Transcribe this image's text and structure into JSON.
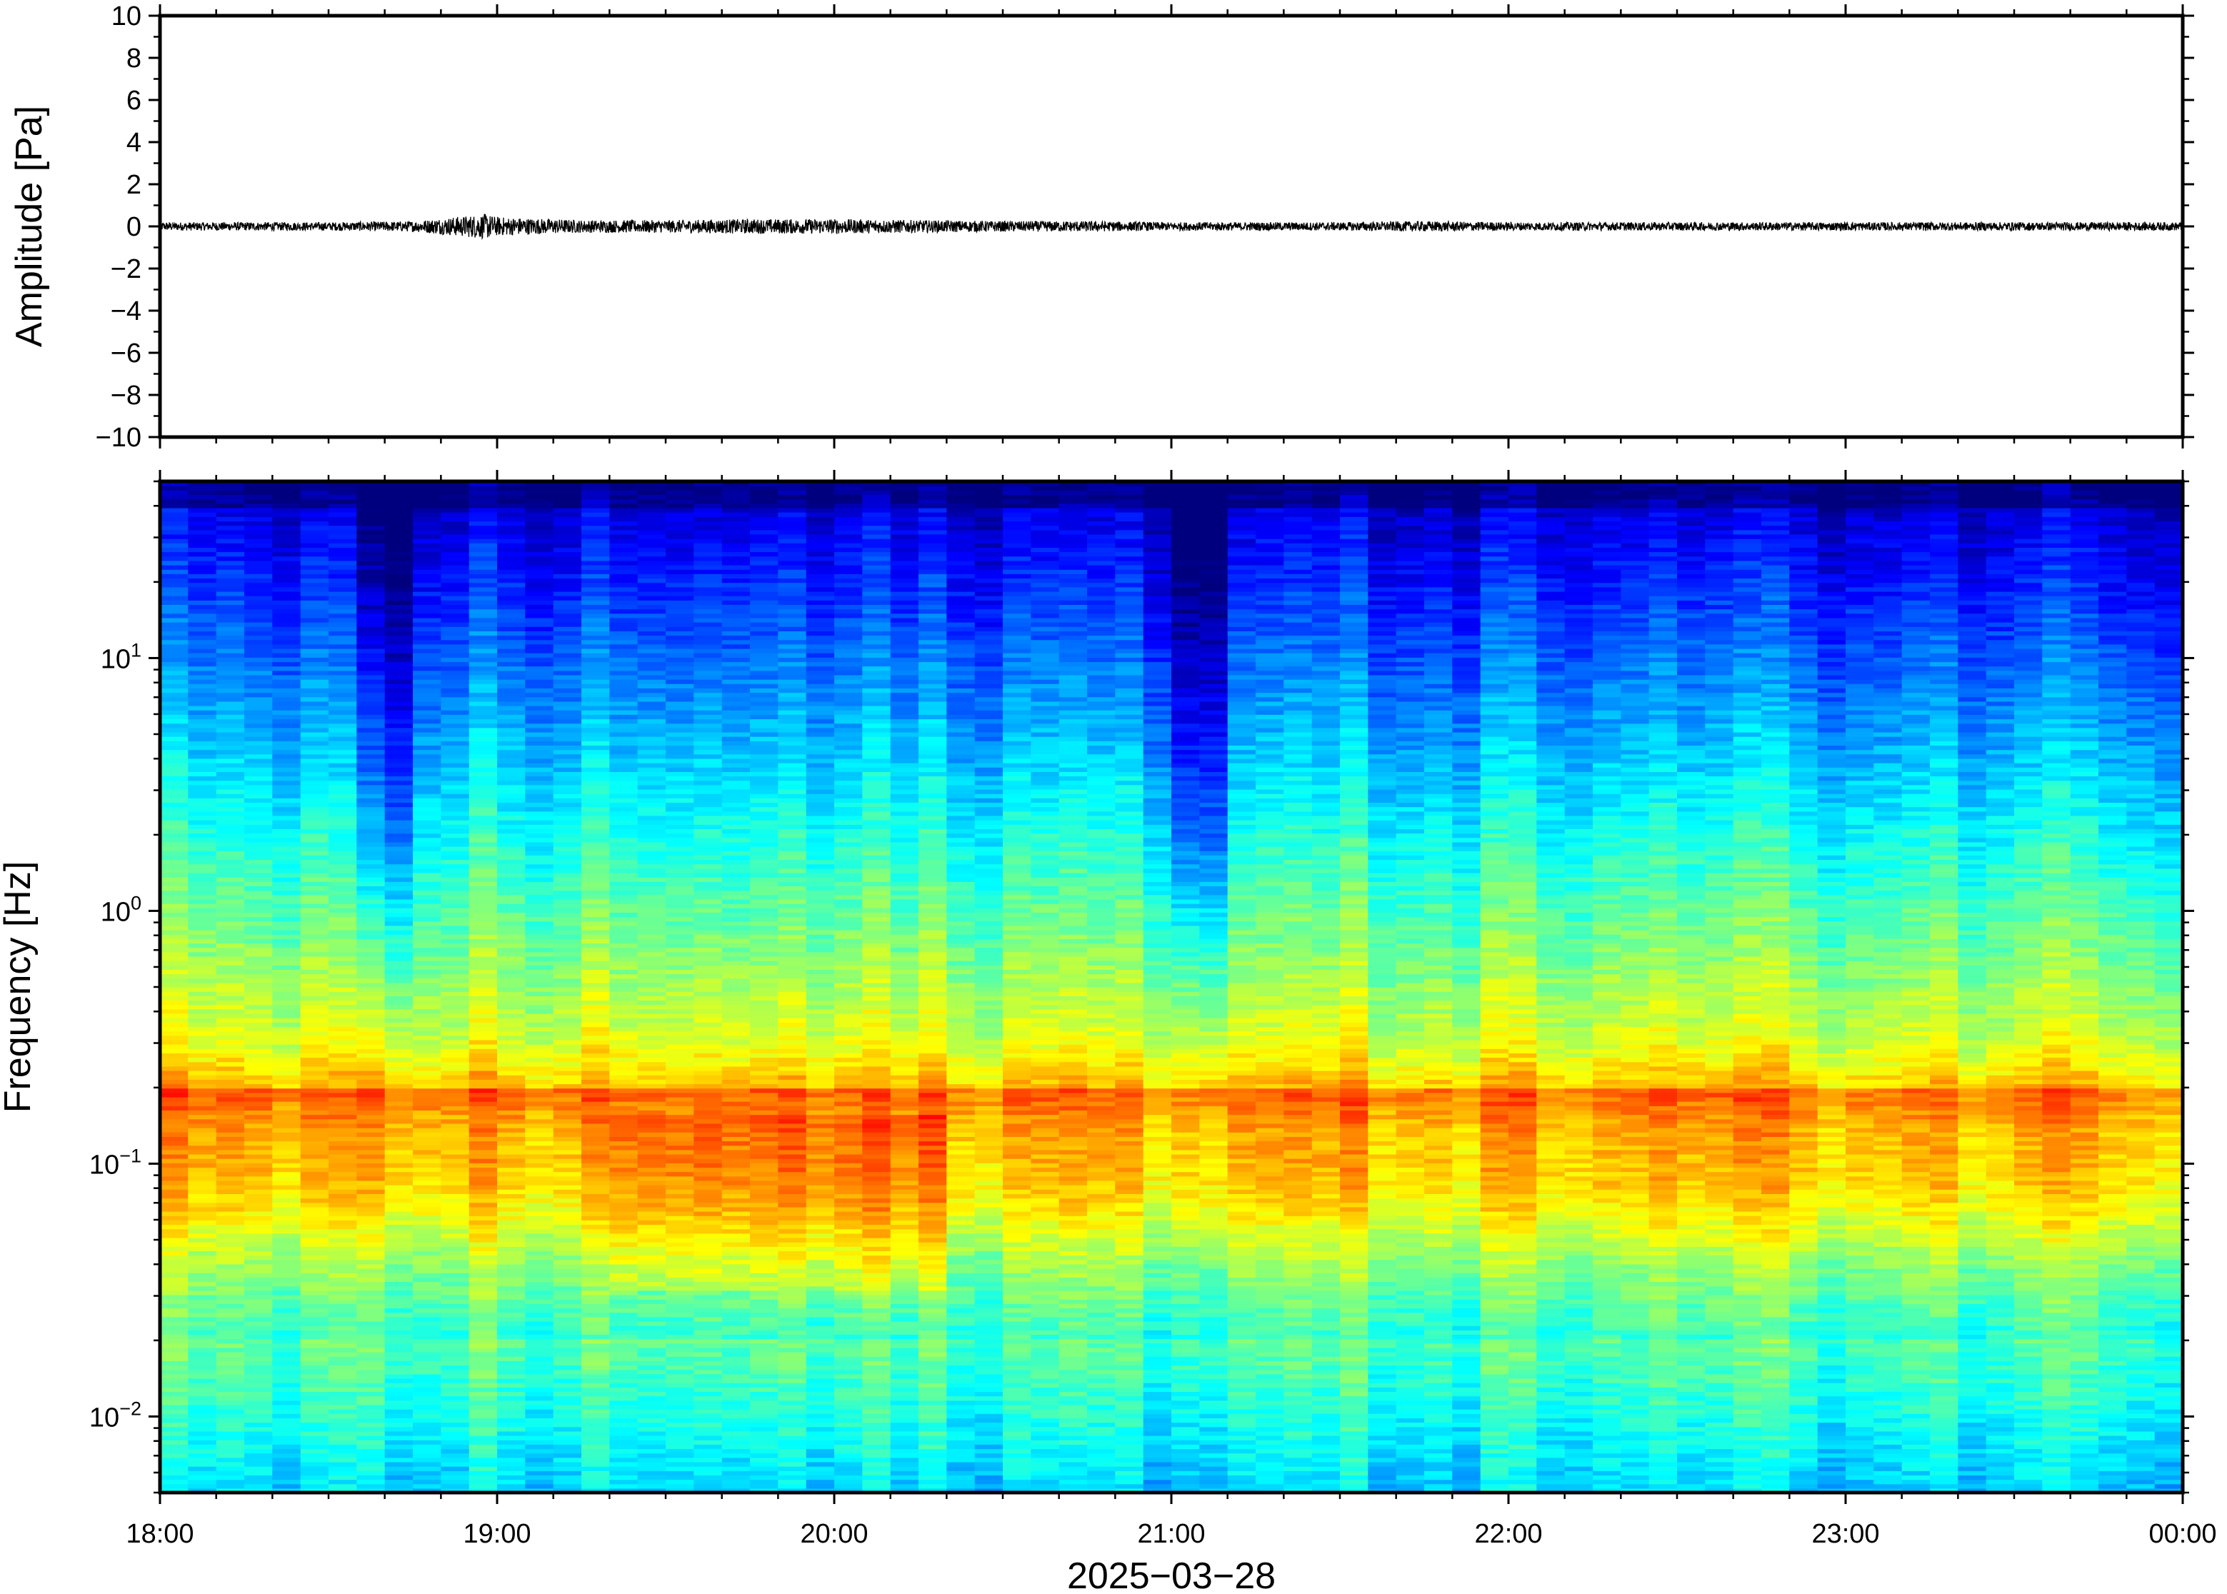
{
  "chart_data": [
    {
      "type": "line",
      "ylabel": "Amplitude [Pa]",
      "ylim": [
        -10,
        10
      ],
      "yticks": [
        -10,
        -8,
        -6,
        -4,
        -2,
        0,
        2,
        4,
        6,
        8,
        10
      ],
      "ytick_labels": [
        "−10",
        "−8",
        "−6",
        "−4",
        "−2",
        "0",
        "2",
        "4",
        "6",
        "8",
        "10"
      ],
      "x_range": [
        "18:00",
        "00:00"
      ],
      "series": [
        {
          "x": [
            "18:00",
            "18:15",
            "18:30",
            "18:45",
            "18:58",
            "19:00",
            "19:15",
            "19:30",
            "19:45",
            "20:00",
            "20:15",
            "20:30",
            "20:45",
            "21:00",
            "21:15",
            "21:30",
            "21:45",
            "22:00",
            "22:15",
            "22:30",
            "22:45",
            "23:00",
            "23:15",
            "23:30",
            "23:45",
            "00:00"
          ],
          "envelope_pa": [
            0.2,
            0.2,
            0.2,
            0.25,
            0.6,
            0.45,
            0.3,
            0.3,
            0.35,
            0.35,
            0.3,
            0.25,
            0.25,
            0.2,
            0.2,
            0.2,
            0.25,
            0.2,
            0.2,
            0.2,
            0.2,
            0.2,
            0.2,
            0.2,
            0.2,
            0.2
          ]
        }
      ],
      "color": "#000000"
    },
    {
      "type": "heatmap",
      "ylabel": "Frequency [Hz]",
      "xlabel": "2025−03−28",
      "yscale": "log",
      "ylim": [
        0.005,
        50
      ],
      "yticks": [
        0.01,
        0.1,
        1,
        10
      ],
      "ytick_labels": [
        {
          "base": "10",
          "exp": "−2"
        },
        {
          "base": "10",
          "exp": "−1"
        },
        {
          "base": "10",
          "exp": "0"
        },
        {
          "base": "10",
          "exp": "1"
        }
      ],
      "xticks": [
        "18:00",
        "19:00",
        "20:00",
        "21:00",
        "22:00",
        "23:00",
        "00:00"
      ],
      "colormap": [
        "#00007f",
        "#0000ff",
        "#007fff",
        "#00ffff",
        "#7fff7f",
        "#ffff00",
        "#ff7f00",
        "#ff0000"
      ],
      "features": {
        "dominant_band_hz": 0.2,
        "secondary_band_hz": [
          0.05,
          0.1
        ],
        "quiet_columns": [
          "18:40",
          "21:05"
        ],
        "strong_window": [
          "19:20",
          "20:20"
        ]
      }
    }
  ]
}
